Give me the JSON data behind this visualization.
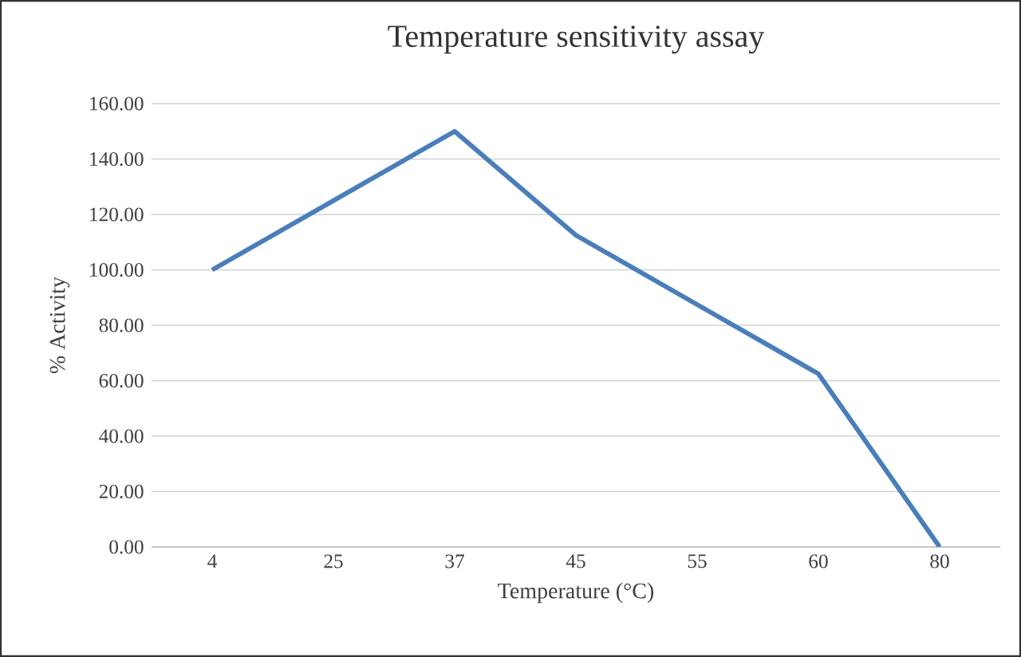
{
  "chart_data": {
    "type": "line",
    "title": "Temperature sensitivity assay",
    "xlabel": "Temperature (°C)",
    "ylabel": "% Activity",
    "categories": [
      "4",
      "25",
      "37",
      "45",
      "55",
      "60",
      "80"
    ],
    "series": [
      {
        "color": "#4a7ebb",
        "values": [
          100,
          125,
          150,
          112.5,
          87.5,
          62.5,
          0
        ]
      }
    ],
    "ylim": [
      0,
      160
    ],
    "yticks": [
      {
        "value": 0,
        "label": "0.00"
      },
      {
        "value": 20,
        "label": "20.00"
      },
      {
        "value": 40,
        "label": "40.00"
      },
      {
        "value": 60,
        "label": "60.00"
      },
      {
        "value": 80,
        "label": "80.00"
      },
      {
        "value": 100,
        "label": "100.00"
      },
      {
        "value": 120,
        "label": "120.00"
      },
      {
        "value": 140,
        "label": "140.00"
      },
      {
        "value": 160,
        "label": "160.00"
      }
    ],
    "grid": "y",
    "marker": "none",
    "line_style": "solid"
  }
}
